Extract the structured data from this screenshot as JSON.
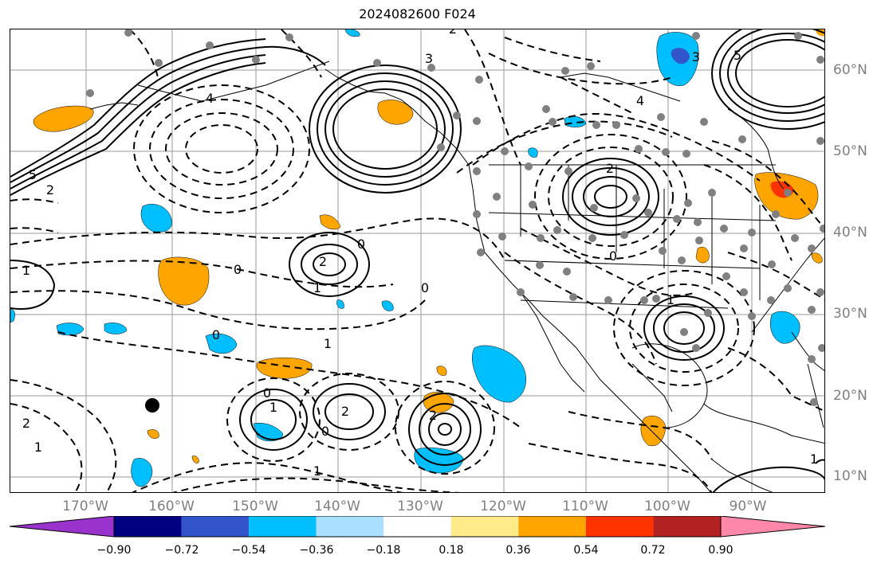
{
  "title": "2024082600 F024",
  "lon_labels": [
    "170°W",
    "160°W",
    "150°W",
    "140°W",
    "130°W",
    "120°W",
    "110°W",
    "100°W",
    "90°W"
  ],
  "lat_labels": [
    "60°N",
    "50°N",
    "40°N",
    "30°N",
    "20°N",
    "10°N"
  ],
  "colorbar": {
    "tick_labels": [
      "−0.90",
      "−0.72",
      "−0.54",
      "−0.36",
      "−0.18",
      "0.18",
      "0.36",
      "0.54",
      "0.72",
      "0.90"
    ],
    "colors": [
      "#9933cc",
      "#000080",
      "#3355cc",
      "#00bfff",
      "#aadfff",
      "#ffffff",
      "#ffeb8a",
      "#ffa500",
      "#ff3300",
      "#b22222",
      "#ff88aa"
    ]
  },
  "contour_labels": [
    "5",
    "4",
    "3",
    "2",
    "1",
    "0",
    "0",
    "0",
    "2",
    "1",
    "0",
    "1",
    "2",
    "1",
    "2",
    "0",
    "0",
    "1",
    "2",
    "1",
    "2",
    "0",
    "1",
    "3",
    "4",
    "5",
    "2",
    "1"
  ],
  "grid": true,
  "colors": {
    "positive_fill": "#ffa500",
    "negative_fill": "#00bfff",
    "strong_positive": "#ff3300",
    "strong_negative": "#3355cc",
    "contour": "#000000",
    "station_dot": "#808080",
    "grid_line": "#999999"
  }
}
